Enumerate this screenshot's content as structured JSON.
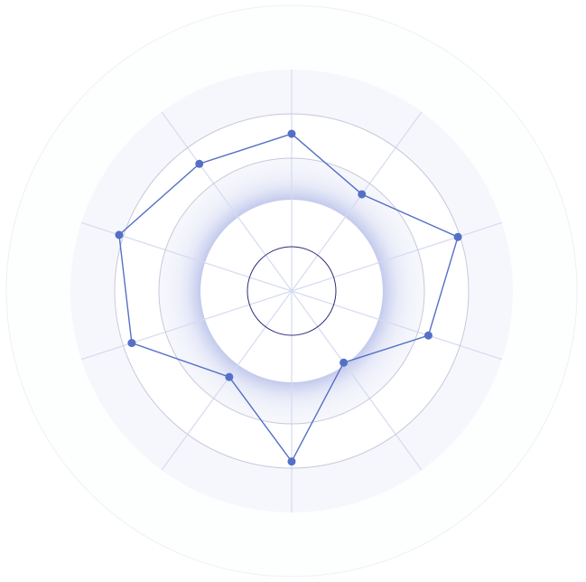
{
  "chart_data": {
    "type": "radar",
    "title": "",
    "axes_count": 10,
    "values": [
      71,
      54,
      79,
      65,
      40,
      77,
      48,
      76,
      82,
      71
    ],
    "rlim": [
      0,
      100
    ],
    "ring_values": [
      20,
      40,
      60,
      80,
      100
    ],
    "grid": true,
    "legend": "none",
    "colors": {
      "series": "#5470c6",
      "axis_line": "#d5dbf0",
      "ring": "#c8c8dc",
      "band": "#f6f7fc",
      "inner_ring": "#2e2e7a",
      "outer_ring": "#eef0f4"
    }
  }
}
